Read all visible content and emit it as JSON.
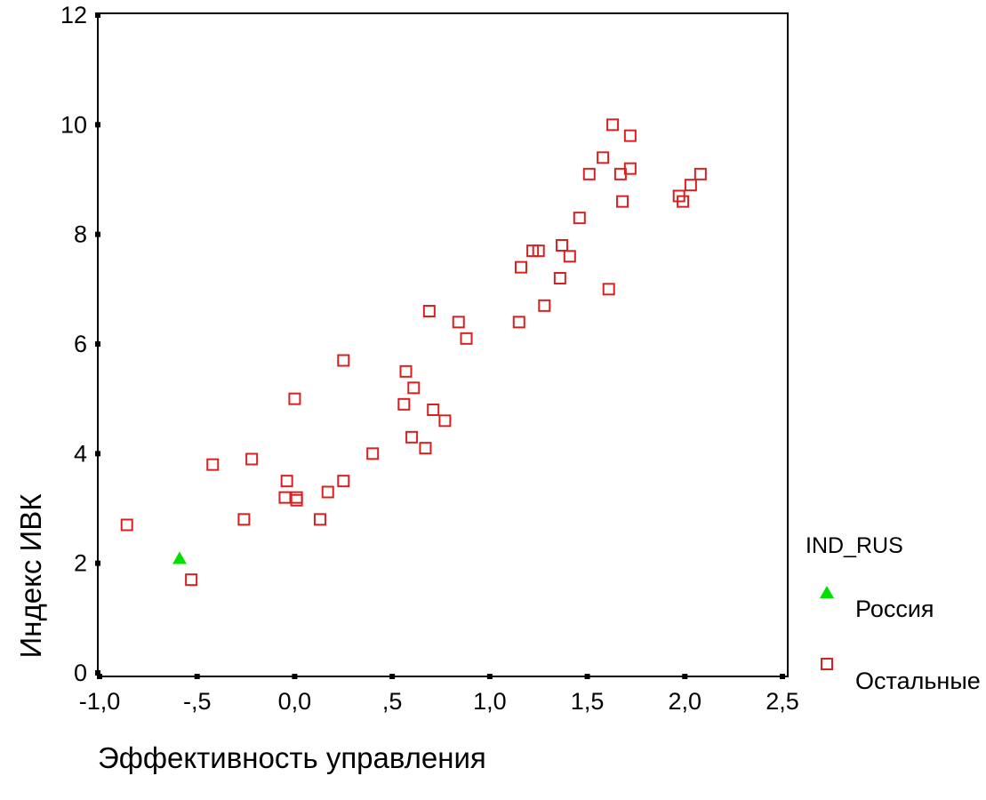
{
  "chart_data": {
    "type": "scatter",
    "xlabel": "Эффективность управления",
    "ylabel": "Индекс ИВК",
    "xlim": [
      -1.0,
      2.5
    ],
    "ylim": [
      0,
      12
    ],
    "x_ticks": [
      -1.0,
      -0.5,
      0.0,
      0.5,
      1.0,
      1.5,
      2.0,
      2.5
    ],
    "x_tick_labels": [
      "-1,0",
      "-,5",
      "0,0",
      ",5",
      "1,0",
      "1,5",
      "2,0",
      "2,5"
    ],
    "y_ticks": [
      0,
      2,
      4,
      6,
      8,
      10,
      12
    ],
    "y_tick_labels": [
      "0",
      "2",
      "4",
      "6",
      "8",
      "10",
      "12"
    ],
    "grid": false,
    "legend": {
      "title": "IND_RUS",
      "placement": "right"
    },
    "series": [
      {
        "name": "Россия",
        "marker": "triangle",
        "color": "#00e000",
        "points": [
          [
            -0.59,
            2.1
          ]
        ]
      },
      {
        "name": "Остальные",
        "marker": "square",
        "color": "#d82020",
        "points": [
          [
            -0.86,
            2.7
          ],
          [
            -0.53,
            1.7
          ],
          [
            -0.42,
            3.8
          ],
          [
            -0.26,
            2.8
          ],
          [
            -0.22,
            3.9
          ],
          [
            -0.05,
            3.2
          ],
          [
            -0.04,
            3.5
          ],
          [
            0.0,
            5.0
          ],
          [
            0.01,
            3.2
          ],
          [
            0.01,
            3.15
          ],
          [
            0.13,
            2.8
          ],
          [
            0.17,
            3.3
          ],
          [
            0.25,
            3.5
          ],
          [
            0.25,
            5.7
          ],
          [
            0.4,
            4.0
          ],
          [
            0.56,
            4.9
          ],
          [
            0.57,
            5.5
          ],
          [
            0.6,
            4.3
          ],
          [
            0.61,
            5.2
          ],
          [
            0.67,
            4.1
          ],
          [
            0.69,
            6.6
          ],
          [
            0.71,
            4.8
          ],
          [
            0.77,
            4.6
          ],
          [
            0.84,
            6.4
          ],
          [
            0.88,
            6.1
          ],
          [
            1.15,
            6.4
          ],
          [
            1.16,
            7.4
          ],
          [
            1.22,
            7.7
          ],
          [
            1.25,
            7.7
          ],
          [
            1.28,
            6.7
          ],
          [
            1.36,
            7.2
          ],
          [
            1.37,
            7.8
          ],
          [
            1.41,
            7.6
          ],
          [
            1.46,
            8.3
          ],
          [
            1.51,
            9.1
          ],
          [
            1.58,
            9.4
          ],
          [
            1.61,
            7.0
          ],
          [
            1.63,
            10.0
          ],
          [
            1.67,
            9.1
          ],
          [
            1.68,
            8.6
          ],
          [
            1.72,
            9.8
          ],
          [
            1.72,
            9.2
          ],
          [
            1.97,
            8.7
          ],
          [
            1.99,
            8.6
          ],
          [
            2.03,
            8.9
          ],
          [
            2.08,
            9.1
          ]
        ]
      }
    ]
  }
}
